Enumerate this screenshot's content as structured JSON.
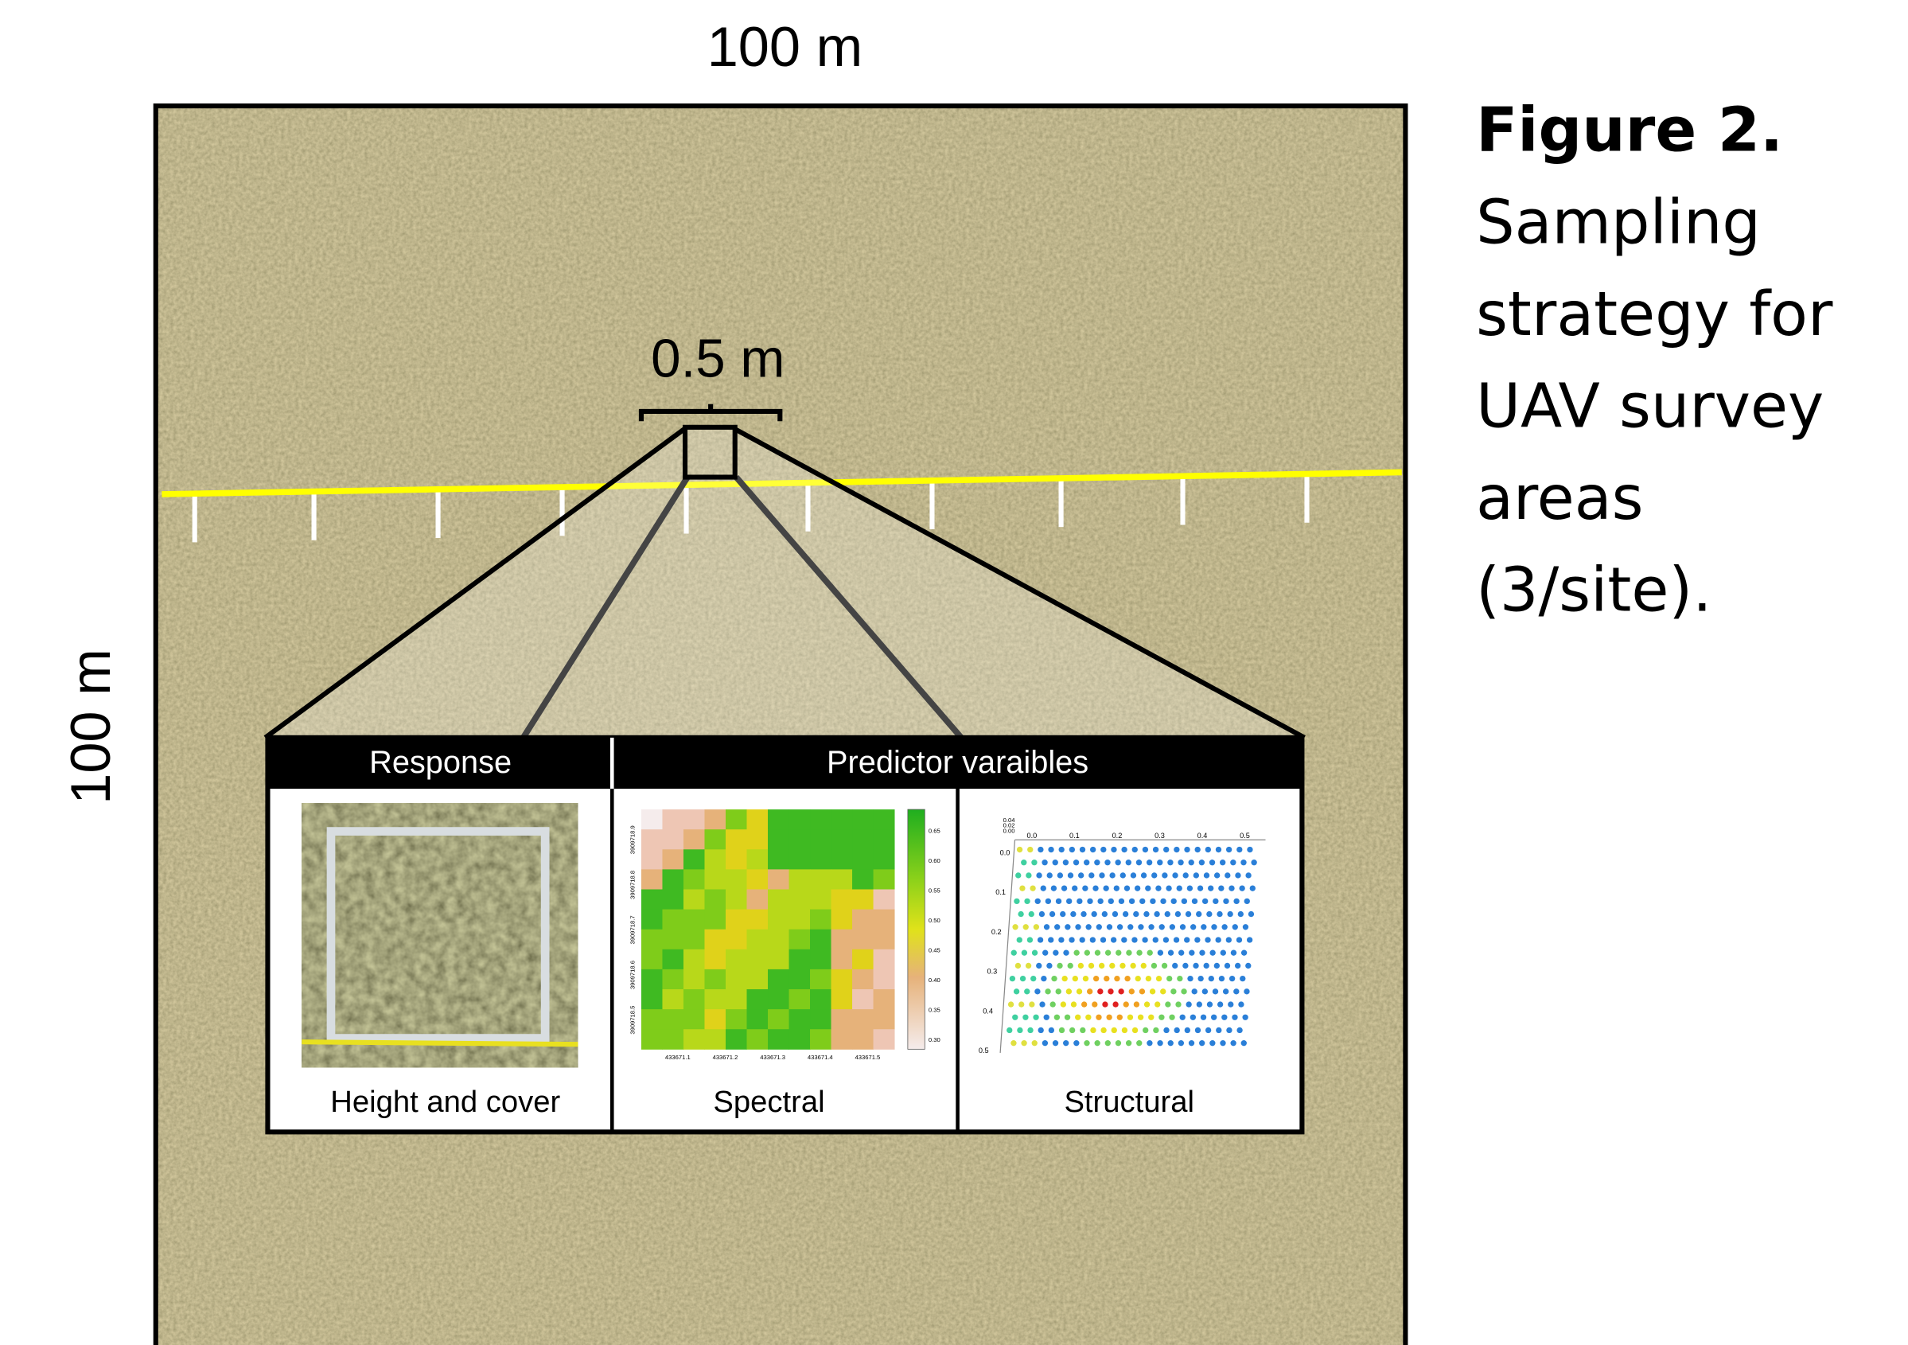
{
  "top_label": "100 m",
  "side_label": "100 m",
  "scale_label": "0.5 m",
  "figure": {
    "title": "Figure 2.",
    "caption_lines": [
      "Sampling",
      "strategy for",
      "UAV survey",
      "areas",
      "(3/site)."
    ]
  },
  "inset": {
    "headers": [
      "Response",
      "Predictor varaibles"
    ],
    "panels": [
      {
        "label": "Height and cover"
      },
      {
        "label": "Spectral",
        "colorbar_ticks": [
          "0.65",
          "0.60",
          "0.55",
          "0.50",
          "0.45",
          "0.40",
          "0.35",
          "0.30"
        ],
        "x_ticks": [
          "433671.1",
          "433671.2",
          "433671.3",
          "433671.4",
          "433671.5"
        ],
        "y_ticks": [
          "3909718.9",
          "3909718.8",
          "3909718.7",
          "3909718.6",
          "3909718.5"
        ]
      },
      {
        "label": "Structural",
        "x_ticks": [
          "0.0",
          "0.1",
          "0.2",
          "0.3",
          "0.4",
          "0.5"
        ],
        "y_ticks": [
          "0.0",
          "0.1",
          "0.2",
          "0.3",
          "0.4",
          "0.5"
        ],
        "z_ticks": [
          "0.04",
          "0.02",
          "0.00"
        ]
      }
    ]
  }
}
